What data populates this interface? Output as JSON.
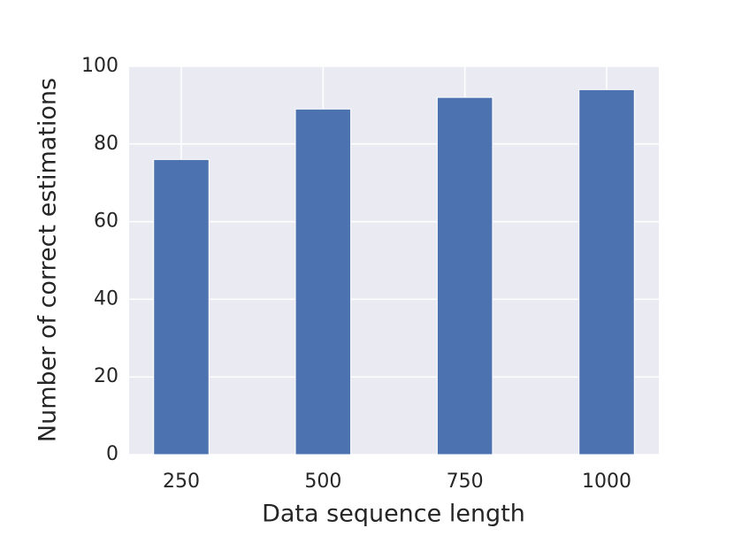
{
  "chart_data": {
    "type": "bar",
    "xlabel": "Data sequence length",
    "ylabel": "Number of correct estimations",
    "categories": [
      "250",
      "500",
      "750",
      "1000"
    ],
    "values": [
      76,
      89,
      92,
      94
    ],
    "color": "#4c72b0",
    "ylim": [
      0,
      100
    ],
    "yticks": [
      0,
      20,
      40,
      60,
      80,
      100
    ],
    "grid": true
  }
}
